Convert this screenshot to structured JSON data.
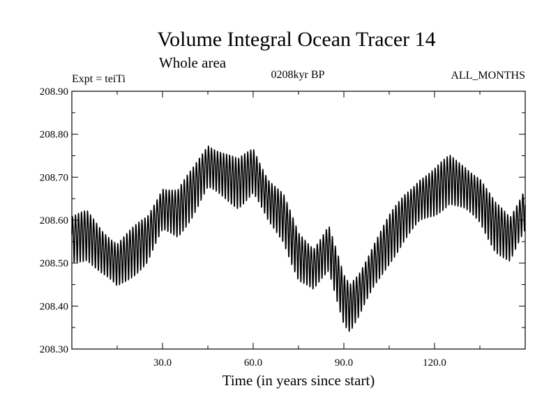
{
  "chart_data": {
    "type": "line",
    "title": "Volume Integral Ocean Tracer 14",
    "subtitle": "Whole area",
    "experiment_label": "Expt = teiTi",
    "period_label": "0208kyr BP",
    "months_label": "ALL_MONTHS",
    "xlabel": "Time (in years since start)",
    "ylabel": "",
    "xlim": [
      0,
      150
    ],
    "ylim": [
      208.3,
      208.9
    ],
    "x_ticks": [
      30.0,
      60.0,
      90.0,
      120.0
    ],
    "x_tick_labels": [
      "30.0",
      "60.0",
      "90.0",
      "120.0"
    ],
    "y_ticks": [
      208.3,
      208.4,
      208.5,
      208.6,
      208.7,
      208.8,
      208.9
    ],
    "y_tick_labels": [
      "208.30",
      "208.40",
      "208.50",
      "208.60",
      "208.70",
      "208.80",
      "208.90"
    ],
    "grid": false,
    "line_color": "#000000",
    "seasonal_amplitude": 0.06,
    "series": [
      {
        "x": [
          0,
          5,
          10,
          15,
          20,
          25,
          30,
          35,
          40,
          45,
          50,
          55,
          60,
          65,
          70,
          75,
          80,
          85,
          90,
          92,
          95,
          100,
          105,
          110,
          115,
          120,
          125,
          130,
          135,
          140,
          145,
          150
        ],
        "values": [
          208.56,
          208.57,
          208.53,
          208.5,
          208.53,
          208.56,
          208.63,
          208.62,
          208.67,
          208.73,
          208.71,
          208.69,
          208.72,
          208.65,
          208.61,
          208.52,
          208.49,
          208.54,
          208.42,
          208.4,
          208.43,
          208.5,
          208.56,
          208.61,
          208.65,
          208.67,
          208.7,
          208.68,
          208.65,
          208.59,
          208.56,
          208.63
        ]
      }
    ]
  }
}
